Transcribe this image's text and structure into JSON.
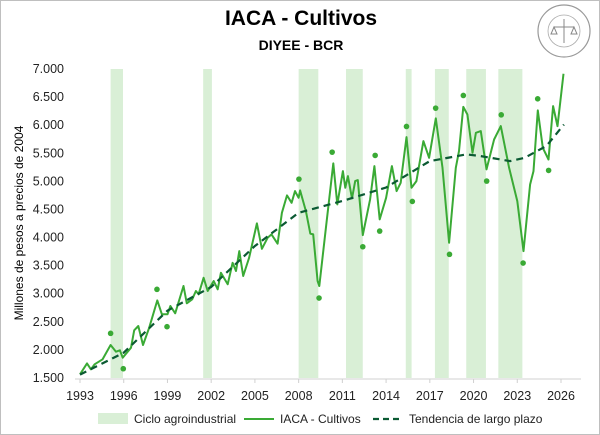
{
  "title": "IACA - Cultivos",
  "subtitle": "DIYEE - BCR",
  "logo_text": "BOLSA DE COMERCIO DE ROSARIO",
  "chart_data": {
    "type": "line",
    "title": "IACA - Cultivos",
    "subtitle": "DIYEE - BCR",
    "xlabel": "",
    "ylabel": "Millones de pesos a precios de 2004",
    "xlim": [
      1993,
      2026
    ],
    "ylim": [
      1500,
      7000
    ],
    "x_ticks": [
      "1993",
      "1996",
      "1999",
      "2002",
      "2005",
      "2008",
      "2011",
      "2014",
      "2017",
      "2020",
      "2023",
      "2026"
    ],
    "y_ticks": [
      "1.500",
      "2.000",
      "2.500",
      "3.000",
      "3.500",
      "4.000",
      "4.500",
      "5.000",
      "5.500",
      "6.000",
      "6.500",
      "7.000"
    ],
    "grid": false,
    "legend_position": "bottom",
    "colors": {
      "band": "#d9efd6",
      "series": "#3aaa35",
      "trend": "#0b5a33",
      "markers": "#3aaa35"
    },
    "bands": {
      "name": "Ciclo agroindustrial",
      "ranges": [
        [
          1995.1,
          1995.95
        ],
        [
          2001.45,
          2002.05
        ],
        [
          2008.0,
          2009.35
        ],
        [
          2011.25,
          2012.4
        ],
        [
          2015.35,
          2015.75
        ],
        [
          2017.35,
          2018.3
        ],
        [
          2019.5,
          2020.85
        ],
        [
          2021.7,
          2023.35
        ]
      ]
    },
    "series": [
      {
        "name": "IACA - Cultivos",
        "style": "solid",
        "points": [
          [
            1993.0,
            1566
          ],
          [
            1993.48,
            1760
          ],
          [
            1993.75,
            1655
          ],
          [
            1994.0,
            1744
          ],
          [
            1994.55,
            1833
          ],
          [
            1995.1,
            2087
          ],
          [
            1995.47,
            1968
          ],
          [
            1995.74,
            1993
          ],
          [
            1995.93,
            1861
          ],
          [
            1996.5,
            2039
          ],
          [
            1996.72,
            2349
          ],
          [
            1997.0,
            2425
          ],
          [
            1997.32,
            2087
          ],
          [
            1997.75,
            2395
          ],
          [
            1998.3,
            2882
          ],
          [
            1998.62,
            2633
          ],
          [
            1999.0,
            2633
          ],
          [
            1999.2,
            2781
          ],
          [
            1999.53,
            2651
          ],
          [
            2000.1,
            3137
          ],
          [
            2000.33,
            2829
          ],
          [
            2000.7,
            2900
          ],
          [
            2000.95,
            3048
          ],
          [
            2001.14,
            2989
          ],
          [
            2001.48,
            3284
          ],
          [
            2001.76,
            3048
          ],
          [
            2002.17,
            3226
          ],
          [
            2002.45,
            3078
          ],
          [
            2002.67,
            3373
          ],
          [
            2003.13,
            3167
          ],
          [
            2003.47,
            3551
          ],
          [
            2003.7,
            3404
          ],
          [
            2003.93,
            3759
          ],
          [
            2004.2,
            3315
          ],
          [
            2004.6,
            3640
          ],
          [
            2005.14,
            4252
          ],
          [
            2005.48,
            3800
          ],
          [
            2005.87,
            3996
          ],
          [
            2006.14,
            4056
          ],
          [
            2006.56,
            3890
          ],
          [
            2006.85,
            4441
          ],
          [
            2007.2,
            4750
          ],
          [
            2007.52,
            4619
          ],
          [
            2007.75,
            4827
          ],
          [
            2008.0,
            4708
          ],
          [
            2008.1,
            4839
          ],
          [
            2008.5,
            4471
          ],
          [
            2008.8,
            4070
          ],
          [
            2009.0,
            4056
          ],
          [
            2009.3,
            3226
          ],
          [
            2009.42,
            3137
          ],
          [
            2009.9,
            4234
          ],
          [
            2010.38,
            5319
          ],
          [
            2010.65,
            4590
          ],
          [
            2011.04,
            5183
          ],
          [
            2011.2,
            4886
          ],
          [
            2011.38,
            5094
          ],
          [
            2011.66,
            4697
          ],
          [
            2011.88,
            5005
          ],
          [
            2012.06,
            5023
          ],
          [
            2012.4,
            4044
          ],
          [
            2012.9,
            4679
          ],
          [
            2013.2,
            5271
          ],
          [
            2013.56,
            4323
          ],
          [
            2014.0,
            4708
          ],
          [
            2014.4,
            5271
          ],
          [
            2014.72,
            4827
          ],
          [
            2015.0,
            4975
          ],
          [
            2015.4,
            5787
          ],
          [
            2015.74,
            4886
          ],
          [
            2016.08,
            5005
          ],
          [
            2016.56,
            5716
          ],
          [
            2016.95,
            5419
          ],
          [
            2017.41,
            6120
          ],
          [
            2017.87,
            5241
          ],
          [
            2018.32,
            3907
          ],
          [
            2018.78,
            5241
          ],
          [
            2019.0,
            5538
          ],
          [
            2019.3,
            6326
          ],
          [
            2019.58,
            6191
          ],
          [
            2019.93,
            5508
          ],
          [
            2020.16,
            5864
          ],
          [
            2020.5,
            5894
          ],
          [
            2020.89,
            5213
          ],
          [
            2021.41,
            5746
          ],
          [
            2021.87,
            5983
          ],
          [
            2022.44,
            5241
          ],
          [
            2023.0,
            4649
          ],
          [
            2023.43,
            3759
          ],
          [
            2023.88,
            4945
          ],
          [
            2024.11,
            5183
          ],
          [
            2024.41,
            6263
          ],
          [
            2024.75,
            5597
          ],
          [
            2025.14,
            5390
          ],
          [
            2025.46,
            6339
          ],
          [
            2025.76,
            5983
          ],
          [
            2026.17,
            6914
          ]
        ]
      },
      {
        "name": "Tendencia de largo plazo",
        "style": "dashed",
        "points": [
          [
            1993.0,
            1560
          ],
          [
            1996.0,
            1950
          ],
          [
            1999.0,
            2700
          ],
          [
            2002.0,
            3120
          ],
          [
            2005.0,
            3850
          ],
          [
            2008.0,
            4440
          ],
          [
            2011.0,
            4650
          ],
          [
            2014.0,
            4890
          ],
          [
            2017.0,
            5360
          ],
          [
            2019.5,
            5480
          ],
          [
            2020.5,
            5450
          ],
          [
            2022.5,
            5360
          ],
          [
            2023.5,
            5420
          ],
          [
            2025.0,
            5630
          ],
          [
            2026.2,
            6010
          ]
        ]
      }
    ],
    "markers": [
      [
        1995.1,
        2295
      ],
      [
        1995.97,
        1665
      ],
      [
        1998.28,
        3078
      ],
      [
        1998.97,
        2413
      ],
      [
        2008.02,
        5040
      ],
      [
        2009.4,
        2923
      ],
      [
        2010.3,
        5520
      ],
      [
        2012.4,
        3836
      ],
      [
        2013.25,
        5462
      ],
      [
        2013.56,
        4115
      ],
      [
        2015.4,
        5977
      ],
      [
        2015.8,
        4643
      ],
      [
        2017.4,
        6303
      ],
      [
        2018.35,
        3701
      ],
      [
        2019.3,
        6529
      ],
      [
        2020.9,
        5005
      ],
      [
        2021.9,
        6184
      ],
      [
        2023.4,
        3546
      ],
      [
        2024.4,
        6469
      ],
      [
        2025.15,
        5195
      ]
    ],
    "legend": [
      "Ciclo agroindustrial",
      "IACA - Cultivos",
      "Tendencia de largo plazo"
    ]
  }
}
